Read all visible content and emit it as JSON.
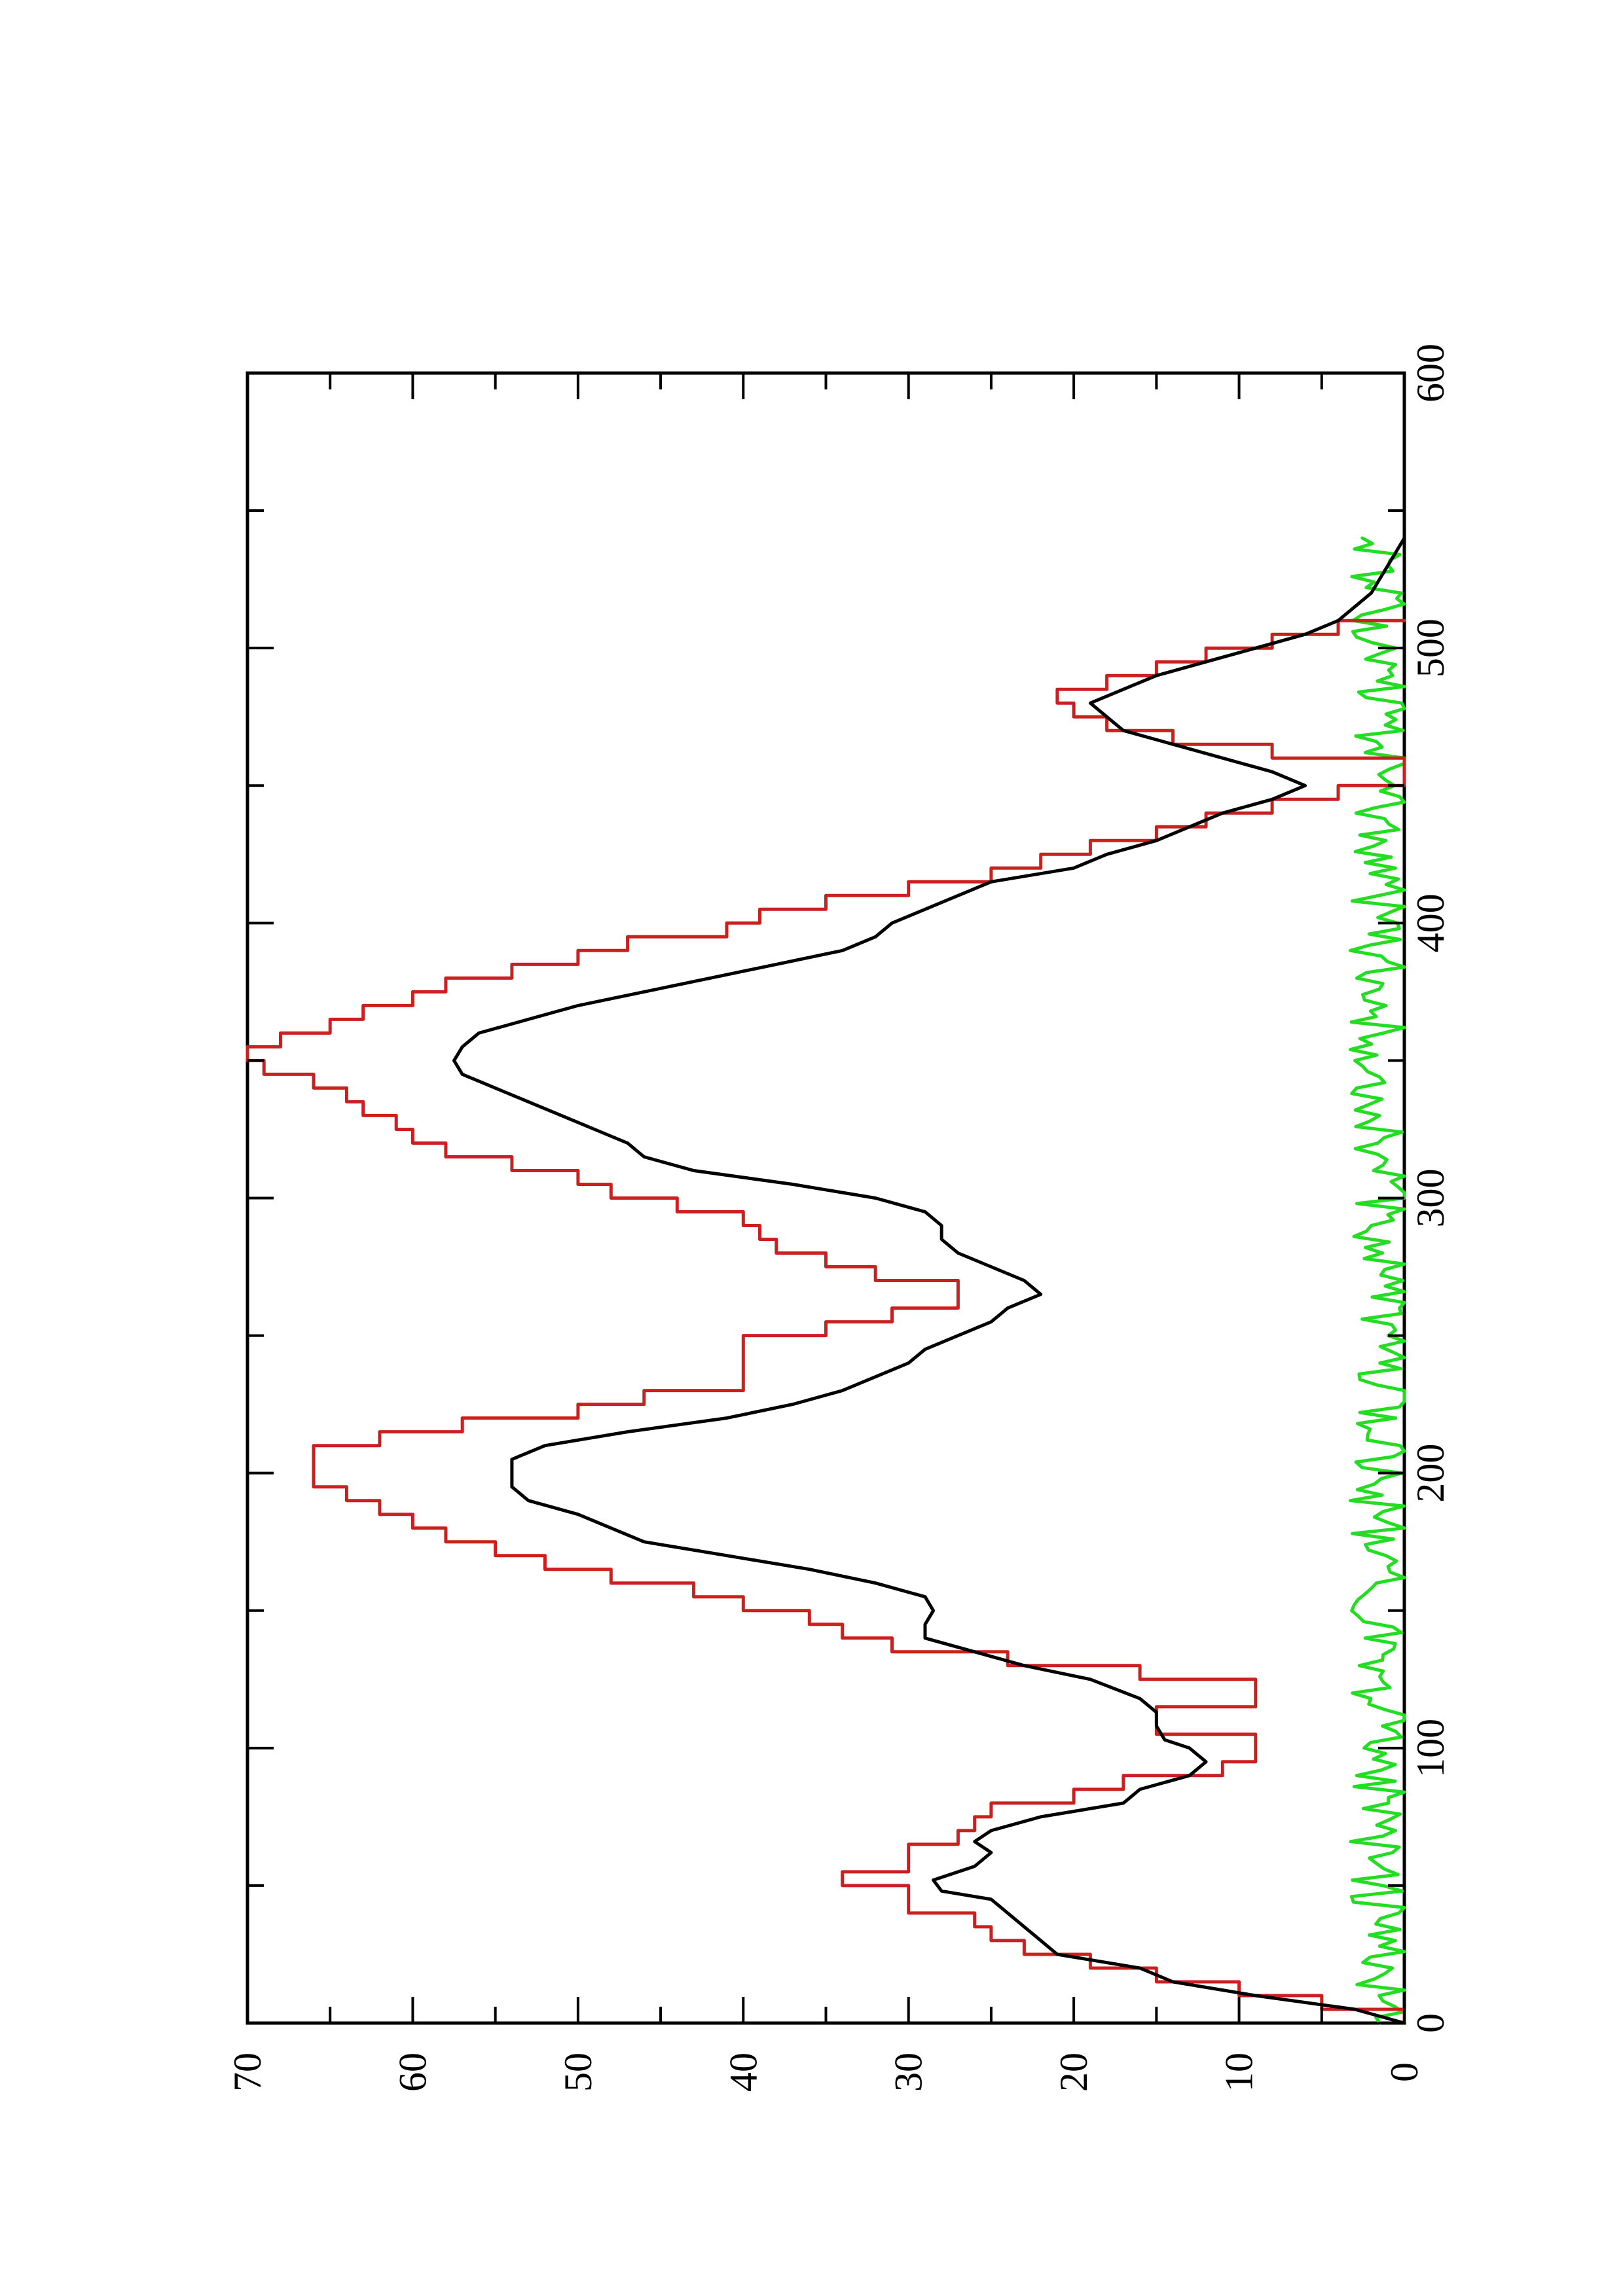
{
  "chart_data": {
    "type": "line",
    "orientation": "rotated-90-clockwise",
    "title": "",
    "xlabel": "",
    "ylabel": "",
    "xlim": [
      0,
      600
    ],
    "ylim": [
      0,
      70
    ],
    "x_ticks": [
      "0",
      "100",
      "200",
      "300",
      "400",
      "500",
      "600"
    ],
    "y_ticks": [
      "0",
      "10",
      "20",
      "30",
      "40",
      "50",
      "60",
      "70"
    ],
    "grid": false,
    "legend": "none",
    "series": [
      {
        "color": "#000000",
        "style": "smooth-line",
        "points": [
          [
            0,
            0
          ],
          [
            5,
            3
          ],
          [
            10,
            9
          ],
          [
            15,
            14
          ],
          [
            20,
            16
          ],
          [
            25,
            21
          ],
          [
            30,
            22
          ],
          [
            35,
            23
          ],
          [
            40,
            24
          ],
          [
            45,
            25
          ],
          [
            48,
            28
          ],
          [
            52,
            28.5
          ],
          [
            57,
            26
          ],
          [
            62,
            25
          ],
          [
            66,
            26
          ],
          [
            70,
            25
          ],
          [
            75,
            22
          ],
          [
            80,
            17
          ],
          [
            85,
            16
          ],
          [
            90,
            13
          ],
          [
            95,
            12
          ],
          [
            100,
            13
          ],
          [
            103,
            14.5
          ],
          [
            108,
            15
          ],
          [
            113,
            15
          ],
          [
            118,
            16
          ],
          [
            125,
            19
          ],
          [
            130,
            23
          ],
          [
            135,
            26
          ],
          [
            140,
            29
          ],
          [
            145,
            29
          ],
          [
            150,
            28.5
          ],
          [
            155,
            29
          ],
          [
            160,
            32
          ],
          [
            165,
            36
          ],
          [
            170,
            41
          ],
          [
            175,
            46
          ],
          [
            180,
            48
          ],
          [
            185,
            50
          ],
          [
            190,
            53
          ],
          [
            195,
            54
          ],
          [
            200,
            54
          ],
          [
            205,
            54
          ],
          [
            210,
            52
          ],
          [
            215,
            47
          ],
          [
            220,
            41
          ],
          [
            225,
            37
          ],
          [
            230,
            34
          ],
          [
            235,
            32
          ],
          [
            240,
            30
          ],
          [
            245,
            29
          ],
          [
            250,
            27
          ],
          [
            255,
            25
          ],
          [
            260,
            24
          ],
          [
            265,
            22
          ],
          [
            270,
            23
          ],
          [
            275,
            25
          ],
          [
            280,
            27
          ],
          [
            285,
            28
          ],
          [
            290,
            28
          ],
          [
            295,
            29
          ],
          [
            300,
            32
          ],
          [
            305,
            37
          ],
          [
            310,
            43
          ],
          [
            315,
            46
          ],
          [
            320,
            47
          ],
          [
            325,
            49
          ],
          [
            330,
            51
          ],
          [
            335,
            53
          ],
          [
            340,
            55
          ],
          [
            345,
            57
          ],
          [
            350,
            57.5
          ],
          [
            355,
            57
          ],
          [
            360,
            56
          ],
          [
            365,
            53
          ],
          [
            370,
            50
          ],
          [
            375,
            46
          ],
          [
            380,
            42
          ],
          [
            385,
            38
          ],
          [
            390,
            34
          ],
          [
            395,
            32
          ],
          [
            400,
            31
          ],
          [
            405,
            29
          ],
          [
            410,
            27
          ],
          [
            415,
            25
          ],
          [
            420,
            20
          ],
          [
            425,
            18
          ],
          [
            430,
            15
          ],
          [
            435,
            13
          ],
          [
            440,
            11
          ],
          [
            445,
            8
          ],
          [
            450,
            6
          ],
          [
            455,
            8
          ],
          [
            460,
            11
          ],
          [
            465,
            14
          ],
          [
            470,
            17
          ],
          [
            475,
            18
          ],
          [
            480,
            19
          ],
          [
            485,
            17
          ],
          [
            490,
            15
          ],
          [
            495,
            12
          ],
          [
            500,
            9
          ],
          [
            505,
            6
          ],
          [
            510,
            4
          ],
          [
            515,
            3
          ],
          [
            520,
            2
          ],
          [
            525,
            1.5
          ],
          [
            530,
            1
          ],
          [
            535,
            0.5
          ],
          [
            540,
            0
          ]
        ]
      },
      {
        "color": "#cc2020",
        "style": "step-line",
        "points": [
          [
            0,
            0
          ],
          [
            5,
            5
          ],
          [
            10,
            10
          ],
          [
            15,
            15
          ],
          [
            20,
            19
          ],
          [
            25,
            23
          ],
          [
            30,
            25
          ],
          [
            35,
            26
          ],
          [
            40,
            30
          ],
          [
            45,
            30
          ],
          [
            50,
            34
          ],
          [
            55,
            30
          ],
          [
            60,
            30
          ],
          [
            65,
            27
          ],
          [
            70,
            26
          ],
          [
            75,
            25
          ],
          [
            80,
            20
          ],
          [
            85,
            17
          ],
          [
            90,
            11
          ],
          [
            95,
            9
          ],
          [
            100,
            9
          ],
          [
            105,
            15
          ],
          [
            110,
            15
          ],
          [
            115,
            9
          ],
          [
            120,
            9
          ],
          [
            125,
            16
          ],
          [
            130,
            24
          ],
          [
            135,
            31
          ],
          [
            140,
            34
          ],
          [
            145,
            36
          ],
          [
            150,
            40
          ],
          [
            155,
            43
          ],
          [
            160,
            48
          ],
          [
            165,
            52
          ],
          [
            170,
            55
          ],
          [
            175,
            58
          ],
          [
            180,
            60
          ],
          [
            185,
            62
          ],
          [
            190,
            64
          ],
          [
            195,
            66
          ],
          [
            200,
            66
          ],
          [
            205,
            66
          ],
          [
            210,
            62
          ],
          [
            215,
            57
          ],
          [
            220,
            50
          ],
          [
            225,
            46
          ],
          [
            230,
            40
          ],
          [
            235,
            40
          ],
          [
            240,
            40
          ],
          [
            245,
            40
          ],
          [
            250,
            35
          ],
          [
            255,
            31
          ],
          [
            260,
            27
          ],
          [
            265,
            27
          ],
          [
            270,
            32
          ],
          [
            275,
            35
          ],
          [
            280,
            38
          ],
          [
            285,
            39
          ],
          [
            290,
            40
          ],
          [
            295,
            44
          ],
          [
            300,
            48
          ],
          [
            305,
            50
          ],
          [
            310,
            54
          ],
          [
            315,
            58
          ],
          [
            320,
            60
          ],
          [
            325,
            61
          ],
          [
            330,
            63
          ],
          [
            335,
            64
          ],
          [
            340,
            66
          ],
          [
            345,
            69
          ],
          [
            350,
            70
          ],
          [
            355,
            68
          ],
          [
            360,
            65
          ],
          [
            365,
            63
          ],
          [
            370,
            60
          ],
          [
            375,
            58
          ],
          [
            380,
            54
          ],
          [
            385,
            50
          ],
          [
            390,
            47
          ],
          [
            395,
            41
          ],
          [
            400,
            39
          ],
          [
            405,
            35
          ],
          [
            410,
            30
          ],
          [
            415,
            25
          ],
          [
            420,
            22
          ],
          [
            425,
            19
          ],
          [
            430,
            15
          ],
          [
            435,
            12
          ],
          [
            440,
            8
          ],
          [
            445,
            4
          ],
          [
            450,
            0
          ],
          [
            455,
            0
          ],
          [
            460,
            8
          ],
          [
            465,
            14
          ],
          [
            470,
            18
          ],
          [
            475,
            20
          ],
          [
            480,
            21
          ],
          [
            485,
            18
          ],
          [
            490,
            15
          ],
          [
            495,
            12
          ],
          [
            500,
            8
          ],
          [
            505,
            4
          ],
          [
            510,
            0
          ]
        ]
      },
      {
        "color": "#22dd22",
        "style": "noisy-line",
        "x_start": 0,
        "x_end": 540,
        "baseline": 1.5,
        "amplitude": 1.8
      }
    ]
  }
}
